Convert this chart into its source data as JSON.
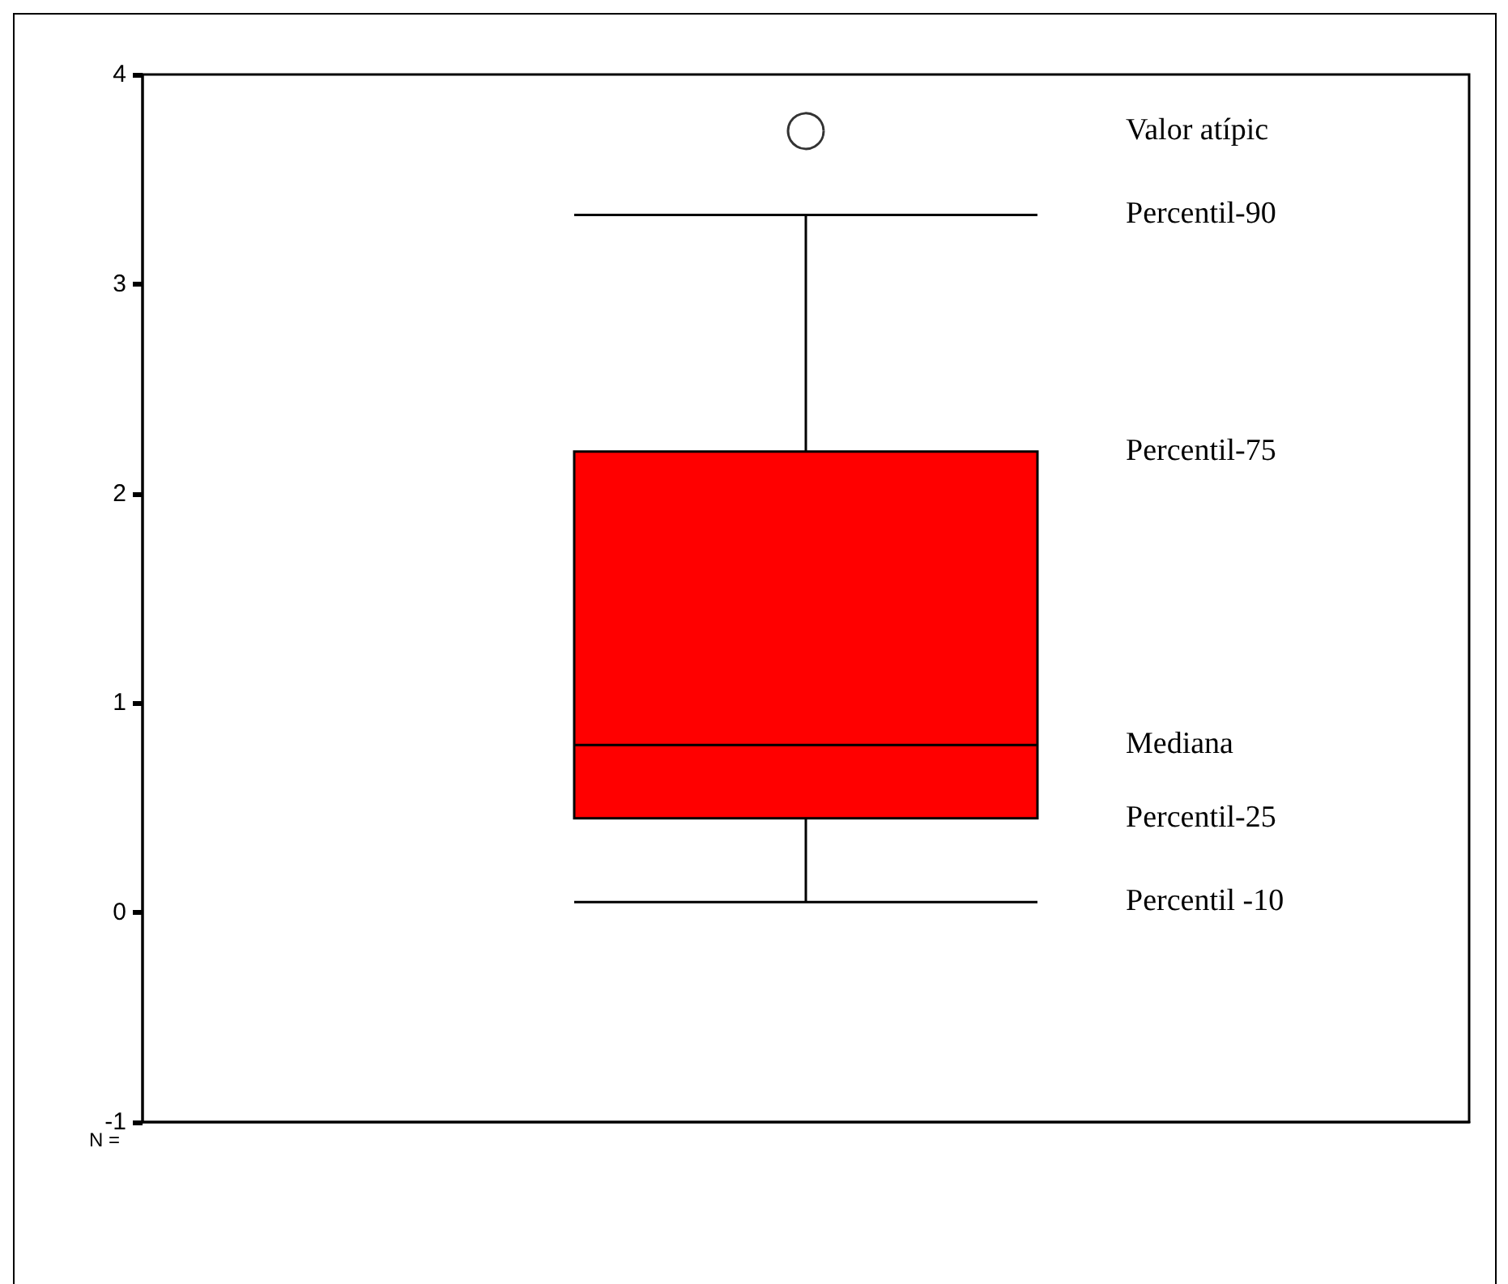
{
  "chart_data": {
    "type": "box",
    "categories": [
      null
    ],
    "color": "#ff0000",
    "boxes": [
      {
        "low": 0.05,
        "q1": 0.45,
        "median": 0.8,
        "q3": 2.2,
        "high": 3.33,
        "outliers": [
          3.73
        ]
      }
    ],
    "ylim": [
      -1,
      4
    ],
    "yticks": [
      -1,
      0,
      1,
      2,
      3,
      4
    ],
    "annotations": [
      "Valor atípic",
      "Percentil-90",
      "Percentil-75",
      "Mediana",
      "Percentil-25",
      "Percentil -10",
      "N ="
    ]
  }
}
